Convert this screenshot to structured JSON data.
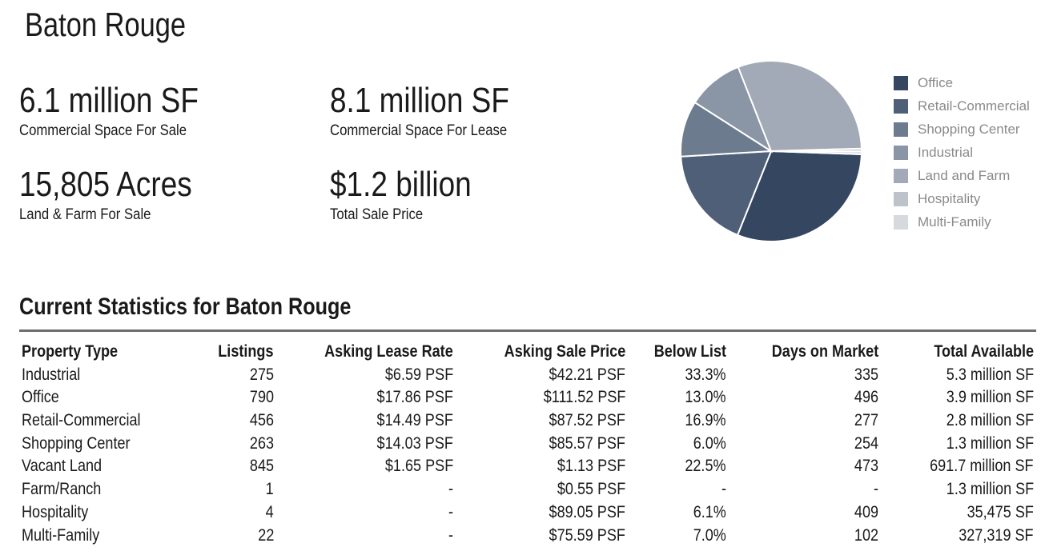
{
  "page": {
    "city_title": "Baton Rouge"
  },
  "stats": [
    {
      "value": "6.1 million SF",
      "label": "Commercial Space For Sale"
    },
    {
      "value": "8.1 million SF",
      "label": "Commercial Space For Lease"
    },
    {
      "value": "15,805 Acres",
      "label": "Land & Farm For Sale"
    },
    {
      "value": "$1.2 billion",
      "label": "Total Sale Price"
    }
  ],
  "chart_data": {
    "type": "pie",
    "slices": [
      {
        "name": "Office",
        "value": 30.5,
        "color": "#354661"
      },
      {
        "name": "Retail-Commercial",
        "value": 18.0,
        "color": "#4f5f78"
      },
      {
        "name": "Shopping Center",
        "value": 10.0,
        "color": "#6d7b8f"
      },
      {
        "name": "Industrial",
        "value": 10.0,
        "color": "#8a95a5"
      },
      {
        "name": "Land and Farm",
        "value": 30.5,
        "color": "#a3aab7"
      },
      {
        "name": "Hospitality",
        "value": 0.5,
        "color": "#bdc2cb"
      },
      {
        "name": "Multi-Family",
        "value": 0.5,
        "color": "#d6d9de"
      }
    ],
    "legend_position": "right"
  },
  "table": {
    "title": "Current Statistics for Baton Rouge",
    "headers": [
      "Property Type",
      "Listings",
      "Asking Lease Rate",
      "Asking Sale Price",
      "Below List",
      "Days on Market",
      "Total Available"
    ],
    "rows": [
      [
        "Industrial",
        "275",
        "$6.59 PSF",
        "$42.21 PSF",
        "33.3%",
        "335",
        "5.3 million SF"
      ],
      [
        "Office",
        "790",
        "$17.86 PSF",
        "$111.52 PSF",
        "13.0%",
        "496",
        "3.9 million SF"
      ],
      [
        "Retail-Commercial",
        "456",
        "$14.49 PSF",
        "$87.52 PSF",
        "16.9%",
        "277",
        "2.8 million SF"
      ],
      [
        "Shopping Center",
        "263",
        "$14.03 PSF",
        "$85.57 PSF",
        "6.0%",
        "254",
        "1.3 million SF"
      ],
      [
        "Vacant Land",
        "845",
        "$1.65 PSF",
        "$1.13 PSF",
        "22.5%",
        "473",
        "691.7 million SF"
      ],
      [
        "Farm/Ranch",
        "1",
        "-",
        "$0.55 PSF",
        "-",
        "-",
        "1.3 million SF"
      ],
      [
        "Hospitality",
        "4",
        "-",
        "$89.05 PSF",
        "6.1%",
        "409",
        "35,475 SF"
      ],
      [
        "Multi-Family",
        "22",
        "-",
        "$75.59 PSF",
        "7.0%",
        "102",
        "327,319 SF"
      ]
    ]
  }
}
